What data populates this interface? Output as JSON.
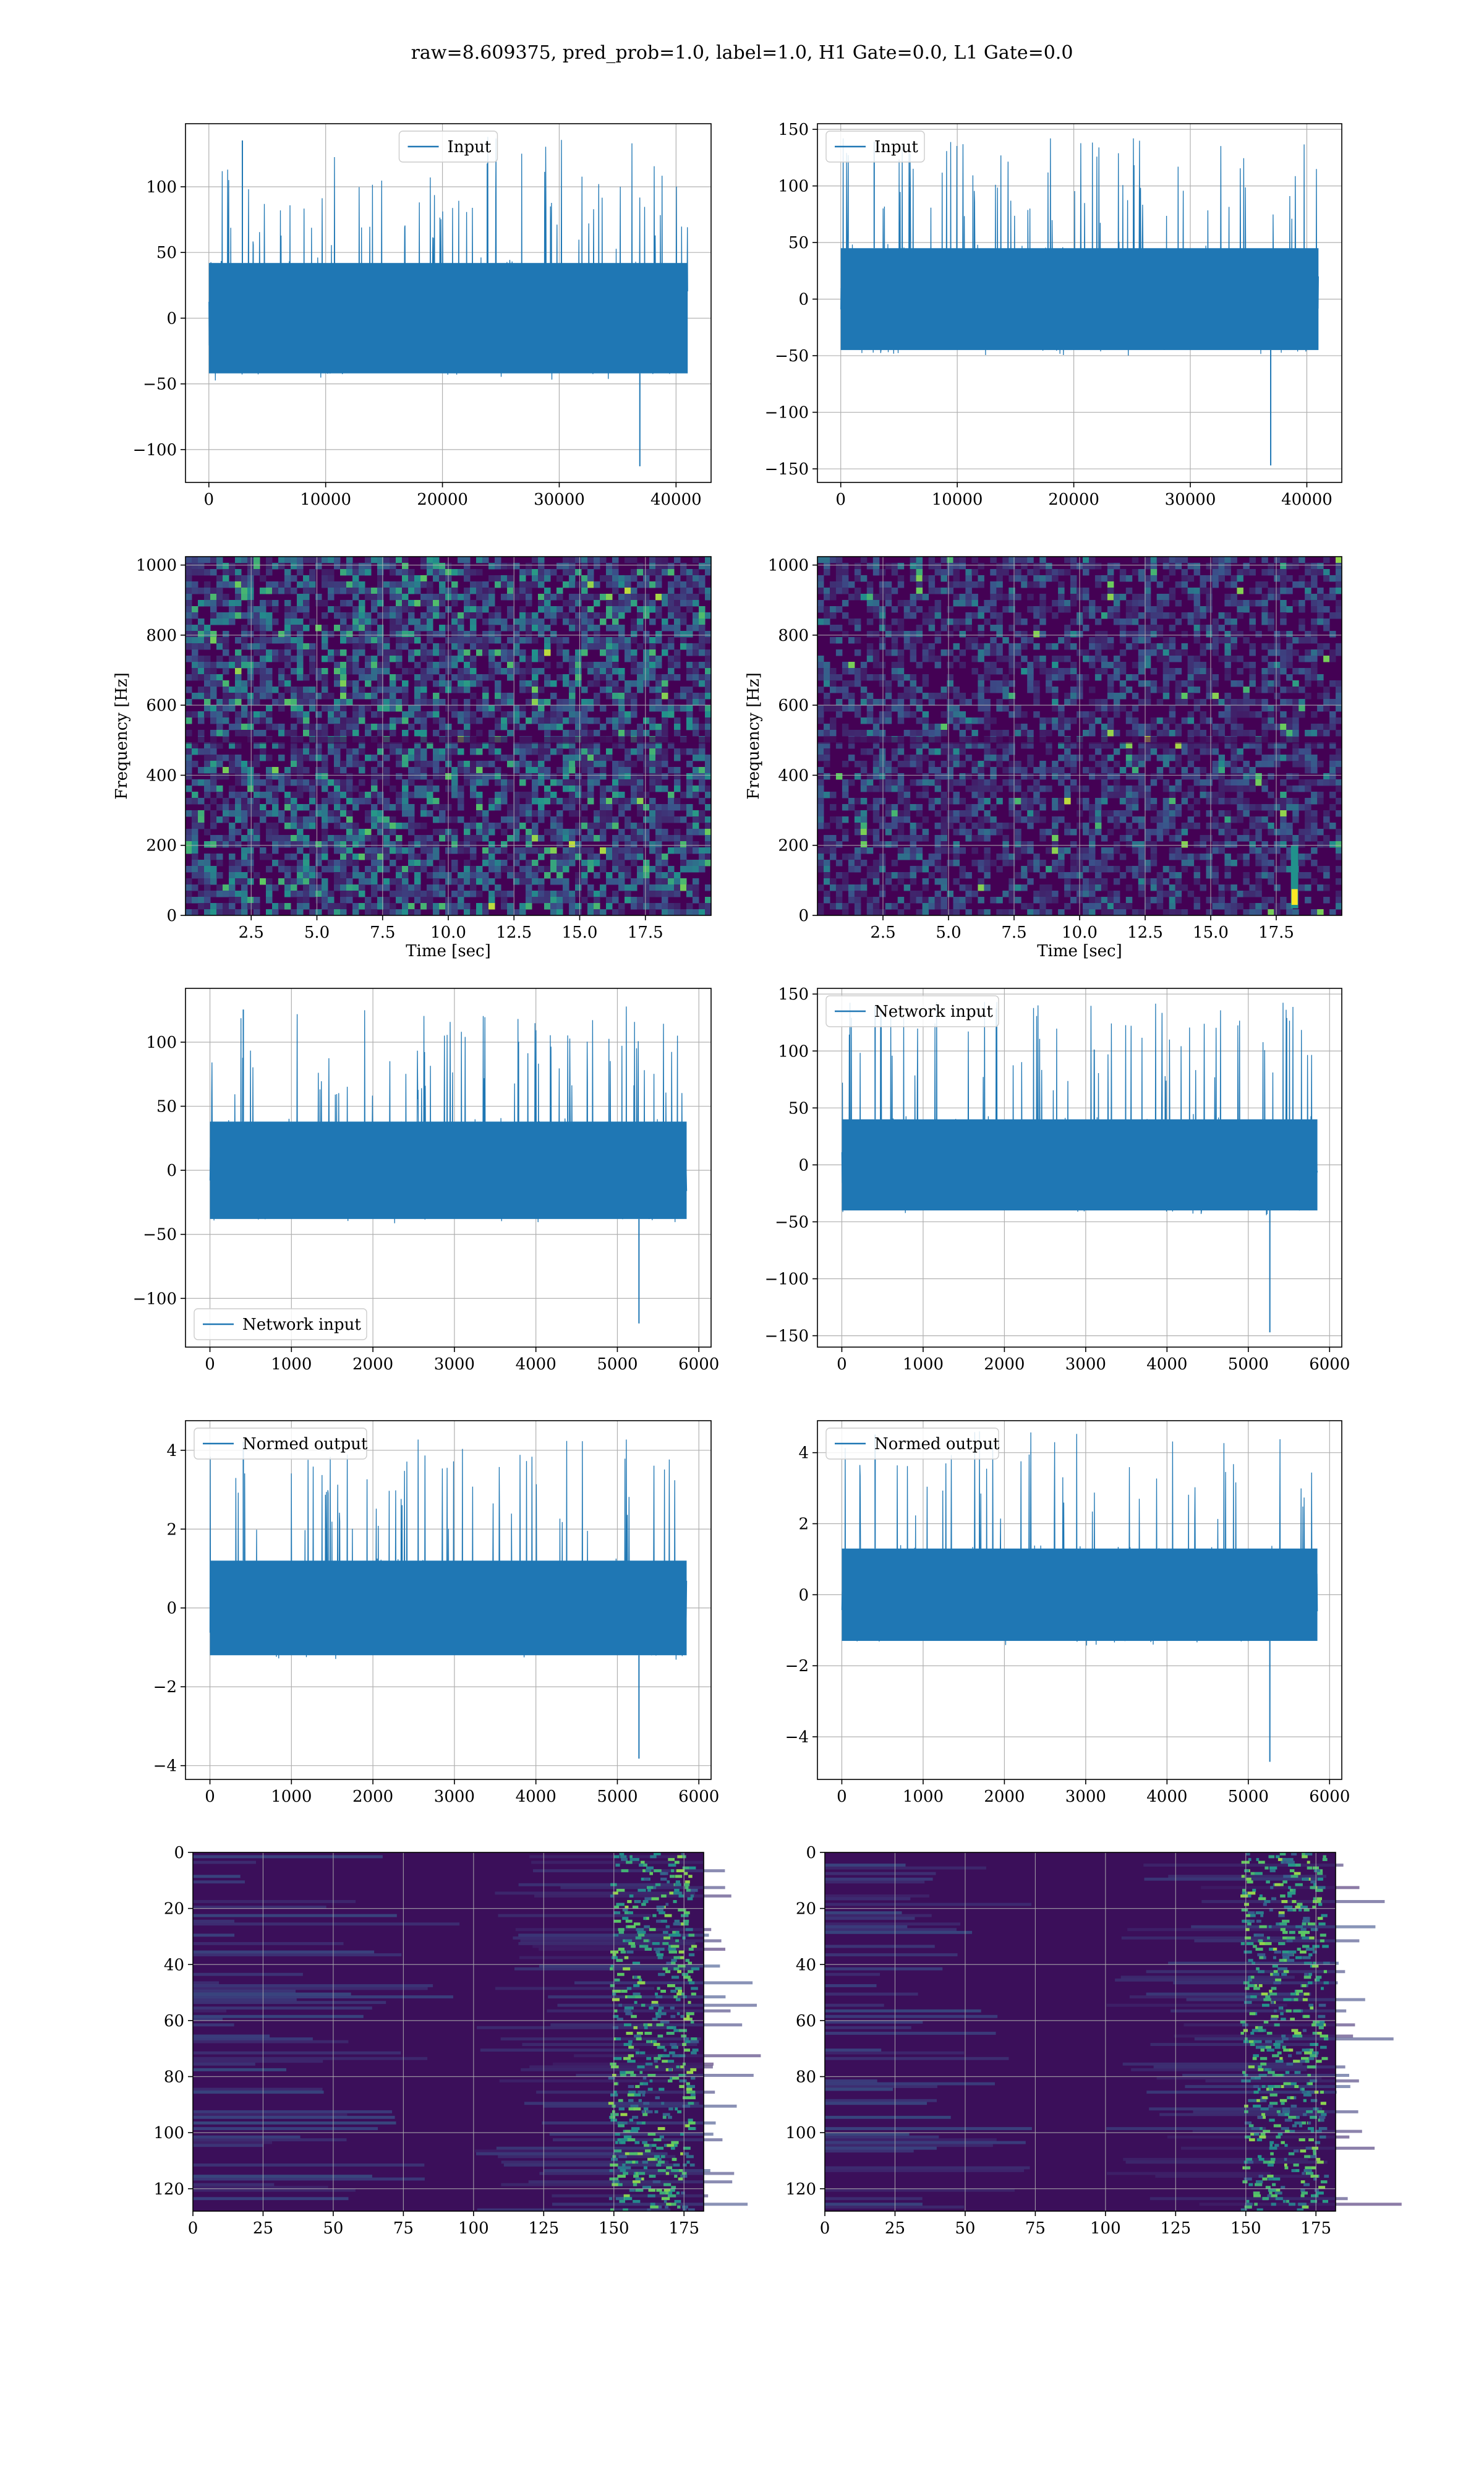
{
  "figure": {
    "suptitle": "raw=8.609375, pred_prob=1.0, label=1.0, H1 Gate=0.0, L1 Gate=0.0"
  },
  "colors": {
    "line": "#1f77b4",
    "grid": "#b0b0b0",
    "axes": "#000000",
    "viridis_low": "#440154",
    "viridis_mid": "#21918c",
    "viridis_high": "#fde725"
  },
  "chart_data": [
    {
      "id": "h1_input",
      "type": "line",
      "series": [
        {
          "name": "Input",
          "values": "dense noise"
        }
      ],
      "x": [
        0,
        41000
      ],
      "xlim": [
        -2000,
        43000
      ],
      "ylim": [
        -125,
        148
      ],
      "xticks": [
        0,
        10000,
        20000,
        30000,
        40000
      ],
      "yticks": [
        -100,
        -50,
        0,
        50,
        100
      ],
      "envelope": {
        "core": [
          -42,
          42
        ],
        "peak": [
          -115,
          138
        ]
      },
      "legend": "upper center",
      "grid": true
    },
    {
      "id": "l1_input",
      "type": "line",
      "series": [
        {
          "name": "Input",
          "values": "dense noise"
        }
      ],
      "x": [
        0,
        41000
      ],
      "xlim": [
        -2000,
        43000
      ],
      "ylim": [
        -162,
        155
      ],
      "xticks": [
        0,
        10000,
        20000,
        30000,
        40000
      ],
      "yticks": [
        -150,
        -100,
        -50,
        0,
        50,
        100,
        150
      ],
      "envelope": {
        "core": [
          -45,
          45
        ],
        "peak": [
          -150,
          142
        ]
      },
      "legend": "upper left",
      "grid": true
    },
    {
      "id": "h1_spec",
      "type": "heatmap",
      "xlabel": "Time [sec]",
      "ylabel": "Frequency [Hz]",
      "xlim": [
        0,
        20
      ],
      "ylim": [
        0,
        1024
      ],
      "xticks": [
        "2.5",
        "5.0",
        "7.5",
        "10.0",
        "12.5",
        "15.0",
        "17.5"
      ],
      "yticks": [
        0,
        200,
        400,
        600,
        800,
        1000
      ],
      "grid": true
    },
    {
      "id": "l1_spec",
      "type": "heatmap",
      "xlabel": "Time [sec]",
      "ylabel": "Frequency [Hz]",
      "xlim": [
        0,
        20
      ],
      "ylim": [
        0,
        1024
      ],
      "xticks": [
        "2.5",
        "5.0",
        "7.5",
        "10.0",
        "12.5",
        "15.0",
        "17.5"
      ],
      "yticks": [
        0,
        200,
        400,
        600,
        800,
        1000
      ],
      "grid": true,
      "feature": {
        "x": 18.2,
        "y_range": [
          20,
          200
        ]
      }
    },
    {
      "id": "h1_net",
      "type": "line",
      "series": [
        {
          "name": "Network input",
          "values": "dense noise"
        }
      ],
      "x": [
        0,
        5850
      ],
      "xlim": [
        -300,
        6150
      ],
      "ylim": [
        -138,
        142
      ],
      "xticks": [
        0,
        1000,
        2000,
        3000,
        4000,
        5000,
        6000
      ],
      "yticks": [
        -100,
        -50,
        0,
        50,
        100
      ],
      "envelope": {
        "core": [
          -38,
          38
        ],
        "peak": [
          -122,
          128
        ]
      },
      "legend": "lower left",
      "grid": true
    },
    {
      "id": "l1_net",
      "type": "line",
      "series": [
        {
          "name": "Network input",
          "values": "dense noise"
        }
      ],
      "x": [
        0,
        5850
      ],
      "xlim": [
        -300,
        6150
      ],
      "ylim": [
        -160,
        155
      ],
      "xticks": [
        0,
        1000,
        2000,
        3000,
        4000,
        5000,
        6000
      ],
      "yticks": [
        -150,
        -100,
        -50,
        0,
        50,
        100,
        150
      ],
      "envelope": {
        "core": [
          -40,
          40
        ],
        "peak": [
          -150,
          143
        ]
      },
      "legend": "upper left",
      "grid": true
    },
    {
      "id": "h1_norm",
      "type": "line",
      "series": [
        {
          "name": "Normed output",
          "values": "dense noise"
        }
      ],
      "x": [
        0,
        5850
      ],
      "xlim": [
        -300,
        6150
      ],
      "ylim": [
        -4.35,
        4.75
      ],
      "xticks": [
        0,
        1000,
        2000,
        3000,
        4000,
        5000,
        6000
      ],
      "yticks": [
        -4,
        -2,
        0,
        2,
        4
      ],
      "envelope": {
        "core": [
          -1.2,
          1.2
        ],
        "peak": [
          -3.9,
          4.3
        ]
      },
      "legend": "upper left",
      "grid": true
    },
    {
      "id": "l1_norm",
      "type": "line",
      "series": [
        {
          "name": "Normed output",
          "values": "dense noise"
        }
      ],
      "x": [
        0,
        5850
      ],
      "xlim": [
        -300,
        6150
      ],
      "ylim": [
        -5.2,
        4.9
      ],
      "xticks": [
        0,
        1000,
        2000,
        3000,
        4000,
        5000,
        6000
      ],
      "yticks": [
        -4,
        -2,
        0,
        2,
        4
      ],
      "envelope": {
        "core": [
          -1.3,
          1.3
        ],
        "peak": [
          -4.8,
          4.6
        ]
      },
      "legend": "upper left",
      "grid": true
    },
    {
      "id": "h1_map",
      "type": "heatmap",
      "xlim": [
        0,
        182
      ],
      "ylim": [
        128,
        0
      ],
      "xticks": [
        0,
        25,
        50,
        75,
        100,
        125,
        150,
        175
      ],
      "yticks": [
        0,
        20,
        40,
        60,
        80,
        100,
        120
      ],
      "grid": true
    },
    {
      "id": "l1_map",
      "type": "heatmap",
      "xlim": [
        0,
        182
      ],
      "ylim": [
        128,
        0
      ],
      "xticks": [
        0,
        25,
        50,
        75,
        100,
        125,
        150,
        175
      ],
      "yticks": [
        0,
        20,
        40,
        60,
        80,
        100,
        120
      ],
      "grid": true
    }
  ]
}
